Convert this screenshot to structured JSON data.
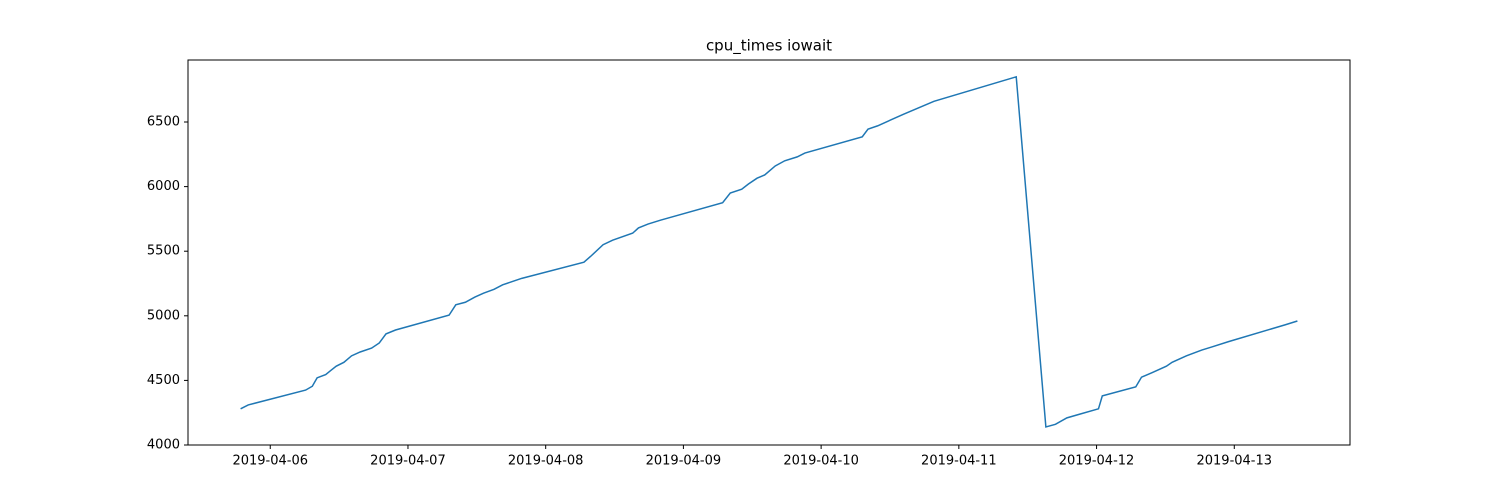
{
  "chart_data": {
    "type": "line",
    "title": "cpu_times iowait",
    "x": [
      "2019-04-05T18:50",
      "2019-04-05T20:10",
      "2019-04-06T06:10",
      "2019-04-06T07:20",
      "2019-04-06T08:10",
      "2019-04-06T09:40",
      "2019-04-06T10:30",
      "2019-04-06T11:30",
      "2019-04-06T12:50",
      "2019-04-06T14:10",
      "2019-04-06T15:40",
      "2019-04-06T17:40",
      "2019-04-06T19:00",
      "2019-04-06T20:10",
      "2019-04-06T21:50",
      "2019-04-07T07:10",
      "2019-04-07T08:20",
      "2019-04-07T10:00",
      "2019-04-07T11:40",
      "2019-04-07T13:10",
      "2019-04-07T15:00",
      "2019-04-07T16:30",
      "2019-04-07T18:10",
      "2019-04-07T19:50",
      "2019-04-08T06:40",
      "2019-04-08T07:50",
      "2019-04-08T10:00",
      "2019-04-08T11:40",
      "2019-04-08T15:10",
      "2019-04-08T16:10",
      "2019-04-08T17:50",
      "2019-04-08T20:00",
      "2019-04-09T06:50",
      "2019-04-09T08:10",
      "2019-04-09T10:10",
      "2019-04-09T11:20",
      "2019-04-09T12:50",
      "2019-04-09T14:10",
      "2019-04-09T16:00",
      "2019-04-09T17:40",
      "2019-04-09T19:50",
      "2019-04-09T21:10",
      "2019-04-10T07:10",
      "2019-04-10T08:10",
      "2019-04-10T09:50",
      "2019-04-10T14:20",
      "2019-04-10T17:00",
      "2019-04-10T19:40",
      "2019-04-11T10:00",
      "2019-04-11T15:10",
      "2019-04-11T16:50",
      "2019-04-11T18:50",
      "2019-04-11T21:10",
      "2019-04-12T00:20",
      "2019-04-12T01:00",
      "2019-04-12T06:50",
      "2019-04-12T07:50",
      "2019-04-12T09:40",
      "2019-04-12T12:10",
      "2019-04-12T13:10",
      "2019-04-12T15:40",
      "2019-04-12T18:20",
      "2019-04-12T20:10",
      "2019-04-12T23:00",
      "2019-04-13T08:50",
      "2019-04-13T11:00"
    ],
    "series": [
      {
        "name": "iowait",
        "color": "#1f77b4",
        "values": [
          4280,
          4310,
          4425,
          4455,
          4520,
          4545,
          4575,
          4610,
          4640,
          4690,
          4720,
          4750,
          4790,
          4860,
          4890,
          5005,
          5085,
          5105,
          5145,
          5175,
          5205,
          5240,
          5265,
          5290,
          5415,
          5460,
          5550,
          5585,
          5640,
          5680,
          5710,
          5740,
          5875,
          5950,
          5980,
          6020,
          6065,
          6090,
          6160,
          6200,
          6230,
          6260,
          6385,
          6445,
          6470,
          6560,
          6610,
          6660,
          6850,
          4140,
          4160,
          4210,
          4240,
          4280,
          4380,
          4450,
          4525,
          4560,
          4610,
          4640,
          4690,
          4735,
          4760,
          4800,
          4930,
          4960
        ]
      }
    ],
    "xlim": [
      "2019-04-05T09:40",
      "2019-04-13T20:10"
    ],
    "xticks": [
      "2019-04-06",
      "2019-04-07",
      "2019-04-08",
      "2019-04-09",
      "2019-04-10",
      "2019-04-11",
      "2019-04-12",
      "2019-04-13"
    ],
    "ylim": [
      4000,
      6980
    ],
    "yticks": [
      4000,
      4500,
      5000,
      5500,
      6000,
      6500
    ]
  }
}
